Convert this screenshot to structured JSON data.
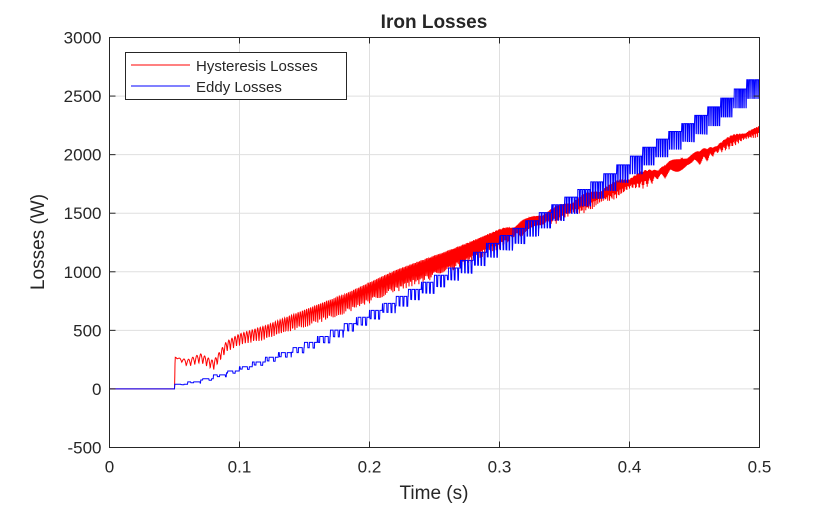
{
  "chart_data": {
    "type": "line",
    "title": "Iron Losses",
    "xlabel": "Time (s)",
    "ylabel": "Losses (W)",
    "xlim": [
      0,
      0.5
    ],
    "ylim": [
      -500,
      3000
    ],
    "xticks": [
      "0",
      "0.1",
      "0.2",
      "0.3",
      "0.4",
      "0.5"
    ],
    "yticks": [
      "-500",
      "0",
      "500",
      "1000",
      "1500",
      "2000",
      "2500",
      "3000"
    ],
    "grid": true,
    "legend_position": "upper-left",
    "series": [
      {
        "name": "Hysteresis Losses",
        "color": "#ff0000",
        "x": [
          0,
          0.05,
          0.0505,
          0.06,
          0.07,
          0.08,
          0.09,
          0.1,
          0.12,
          0.14,
          0.16,
          0.18,
          0.2,
          0.22,
          0.24,
          0.26,
          0.28,
          0.3,
          0.32,
          0.34,
          0.36,
          0.38,
          0.4,
          0.42,
          0.44,
          0.46,
          0.48,
          0.5
        ],
        "values": [
          0,
          0,
          270,
          220,
          260,
          200,
          360,
          420,
          480,
          560,
          640,
          720,
          820,
          920,
          1000,
          1080,
          1180,
          1280,
          1380,
          1470,
          1560,
          1650,
          1750,
          1820,
          1920,
          2000,
          2120,
          2200
        ],
        "oscillation_amplitude": [
          0,
          0,
          0,
          60,
          80,
          80,
          90,
          100,
          120,
          140,
          160,
          170,
          180,
          190,
          200,
          200,
          180,
          170,
          160,
          150,
          170,
          170,
          160,
          150,
          140,
          130,
          110,
          90
        ]
      },
      {
        "name": "Eddy Losses",
        "color": "#0000ff",
        "x": [
          0,
          0.05,
          0.0505,
          0.07,
          0.1,
          0.12,
          0.14,
          0.16,
          0.18,
          0.2,
          0.22,
          0.24,
          0.26,
          0.28,
          0.3,
          0.32,
          0.34,
          0.36,
          0.38,
          0.4,
          0.42,
          0.44,
          0.46,
          0.48,
          0.5
        ],
        "values": [
          0,
          0,
          30,
          70,
          170,
          250,
          330,
          420,
          530,
          640,
          760,
          880,
          1000,
          1130,
          1280,
          1400,
          1540,
          1670,
          1800,
          1950,
          2100,
          2230,
          2370,
          2520,
          2680
        ],
        "dip_depth": [
          0,
          0,
          0,
          10,
          20,
          30,
          40,
          50,
          60,
          70,
          80,
          90,
          100,
          110,
          120,
          130,
          130,
          140,
          140,
          150,
          150,
          150,
          160,
          160,
          160
        ]
      }
    ]
  },
  "legend": {
    "items": [
      {
        "label": "Hysteresis Losses",
        "color": "#ff0000"
      },
      {
        "label": "Eddy Losses",
        "color": "#0000ff"
      }
    ]
  }
}
